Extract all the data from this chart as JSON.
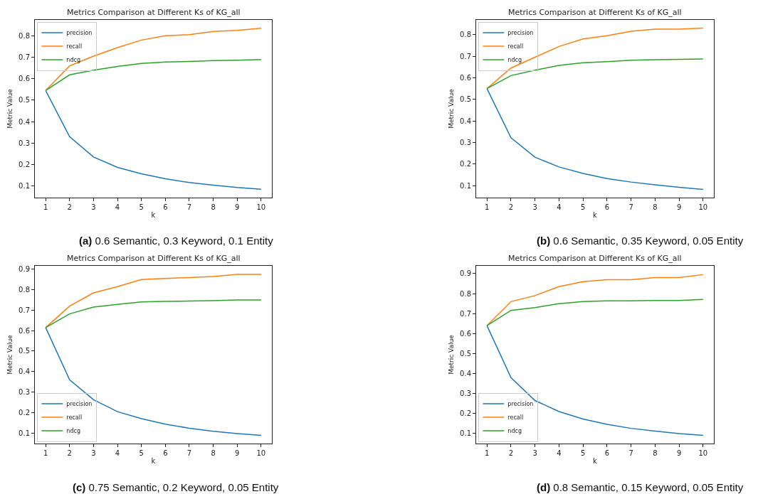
{
  "chart_data": [
    {
      "type": "line",
      "title": "Metrics Comparison at Different Ks of KG_all",
      "xlabel": "k",
      "ylabel": "Metric Value",
      "x": [
        1,
        2,
        3,
        4,
        5,
        6,
        7,
        8,
        9,
        10
      ],
      "xlim": [
        0.55,
        10.45
      ],
      "xticks": [
        1,
        2,
        3,
        4,
        5,
        6,
        7,
        8,
        9,
        10
      ],
      "ylim": [
        0.046,
        0.874
      ],
      "yticks": [
        0.1,
        0.2,
        0.3,
        0.4,
        0.5,
        0.6,
        0.7,
        0.8
      ],
      "legend": "top left",
      "annotations": [
        "(a) 0.6 Semantic, 0.3 Keyword, 0.1 Entity"
      ],
      "series": [
        {
          "name": "precision",
          "color": "#1f77b4",
          "values": [
            0.545,
            0.33,
            0.235,
            0.187,
            0.157,
            0.134,
            0.116,
            0.104,
            0.093,
            0.085
          ]
        },
        {
          "name": "recall",
          "color": "#ff7f0e",
          "values": [
            0.545,
            0.66,
            0.705,
            0.745,
            0.78,
            0.8,
            0.805,
            0.82,
            0.825,
            0.835
          ]
        },
        {
          "name": "ndcg",
          "color": "#2ca02c",
          "values": [
            0.545,
            0.618,
            0.64,
            0.657,
            0.671,
            0.678,
            0.68,
            0.684,
            0.686,
            0.689
          ]
        }
      ]
    },
    {
      "type": "line",
      "title": "Metrics Comparison at Different Ks of KG_all",
      "xlabel": "k",
      "ylabel": "Metric Value",
      "x": [
        1,
        2,
        3,
        4,
        5,
        6,
        7,
        8,
        9,
        10
      ],
      "xlim": [
        0.55,
        10.45
      ],
      "xticks": [
        1,
        2,
        3,
        4,
        5,
        6,
        7,
        8,
        9,
        10
      ],
      "ylim": [
        0.045,
        0.868
      ],
      "yticks": [
        0.1,
        0.2,
        0.3,
        0.4,
        0.5,
        0.6,
        0.7,
        0.8
      ],
      "legend": "top left",
      "annotations": [
        "(b) 0.6 Semantic, 0.35 Keyword, 0.05 Entity"
      ],
      "series": [
        {
          "name": "precision",
          "color": "#1f77b4",
          "values": [
            0.55,
            0.322,
            0.232,
            0.187,
            0.157,
            0.133,
            0.117,
            0.104,
            0.093,
            0.083
          ]
        },
        {
          "name": "recall",
          "color": "#ff7f0e",
          "values": [
            0.55,
            0.645,
            0.695,
            0.745,
            0.78,
            0.795,
            0.815,
            0.825,
            0.825,
            0.83
          ]
        },
        {
          "name": "ndcg",
          "color": "#2ca02c",
          "values": [
            0.55,
            0.61,
            0.635,
            0.657,
            0.67,
            0.675,
            0.681,
            0.684,
            0.685,
            0.687
          ]
        }
      ]
    },
    {
      "type": "line",
      "title": "Metrics Comparison at Different Ks of KG_all",
      "xlabel": "k",
      "ylabel": "Metric Value",
      "x": [
        1,
        2,
        3,
        4,
        5,
        6,
        7,
        8,
        9,
        10
      ],
      "xlim": [
        0.55,
        10.45
      ],
      "xticks": [
        1,
        2,
        3,
        4,
        5,
        6,
        7,
        8,
        9,
        10
      ],
      "ylim": [
        0.048,
        0.917
      ],
      "yticks": [
        0.1,
        0.2,
        0.3,
        0.4,
        0.5,
        0.6,
        0.7,
        0.8,
        0.9
      ],
      "legend": "bottom left",
      "annotations": [
        "(c) 0.75 Semantic, 0.2 Keyword, 0.05 Entity"
      ],
      "series": [
        {
          "name": "precision",
          "color": "#1f77b4",
          "values": [
            0.615,
            0.36,
            0.262,
            0.204,
            0.17,
            0.143,
            0.123,
            0.108,
            0.097,
            0.088
          ]
        },
        {
          "name": "recall",
          "color": "#ff7f0e",
          "values": [
            0.615,
            0.72,
            0.785,
            0.815,
            0.85,
            0.855,
            0.86,
            0.865,
            0.875,
            0.875
          ]
        },
        {
          "name": "ndcg",
          "color": "#2ca02c",
          "values": [
            0.615,
            0.682,
            0.715,
            0.728,
            0.741,
            0.743,
            0.745,
            0.747,
            0.75,
            0.75
          ]
        }
      ]
    },
    {
      "type": "line",
      "title": "Metrics Comparison at Different Ks of KG_all",
      "xlabel": "k",
      "ylabel": "Metric Value",
      "x": [
        1,
        2,
        3,
        4,
        5,
        6,
        7,
        8,
        9,
        10
      ],
      "xlim": [
        0.55,
        10.45
      ],
      "xticks": [
        1,
        2,
        3,
        4,
        5,
        6,
        7,
        8,
        9,
        10
      ],
      "ylim": [
        0.05,
        0.939
      ],
      "yticks": [
        0.1,
        0.2,
        0.3,
        0.4,
        0.5,
        0.6,
        0.7,
        0.8,
        0.9
      ],
      "legend": "bottom left",
      "annotations": [
        "(d) 0.8 Semantic, 0.15 Keyword, 0.05 Entity"
      ],
      "series": [
        {
          "name": "precision",
          "color": "#1f77b4",
          "values": [
            0.64,
            0.38,
            0.265,
            0.21,
            0.173,
            0.146,
            0.126,
            0.112,
            0.1,
            0.091
          ]
        },
        {
          "name": "recall",
          "color": "#ff7f0e",
          "values": [
            0.64,
            0.76,
            0.79,
            0.835,
            0.86,
            0.87,
            0.87,
            0.88,
            0.88,
            0.895
          ]
        },
        {
          "name": "ndcg",
          "color": "#2ca02c",
          "values": [
            0.64,
            0.716,
            0.73,
            0.75,
            0.76,
            0.764,
            0.764,
            0.766,
            0.766,
            0.771
          ]
        }
      ]
    }
  ]
}
